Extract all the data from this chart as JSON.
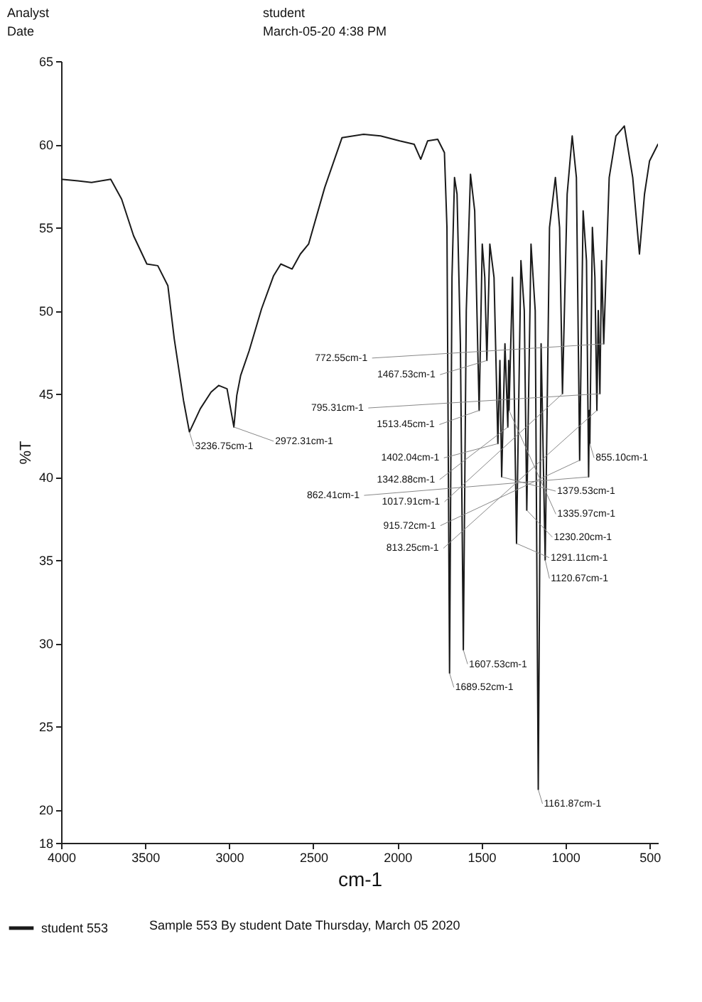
{
  "chart_data": {
    "type": "line",
    "xlabel": "cm-1",
    "ylabel": "%T",
    "xlim": [
      4000,
      450
    ],
    "ylim": [
      18,
      65
    ],
    "xticks": [
      4000,
      3500,
      3000,
      2500,
      2000,
      1500,
      1000,
      500
    ],
    "yticks": [
      18,
      20,
      25,
      30,
      35,
      40,
      45,
      50,
      55,
      60,
      65
    ],
    "grid": false,
    "legend": "bottom left",
    "series": [
      {
        "name": "student 553",
        "color": "#1a1a1a",
        "x": [
          4000,
          3900,
          3819,
          3705,
          3640,
          3569,
          3490,
          3425,
          3365,
          3327,
          3272,
          3236.75,
          3172,
          3108,
          3063,
          3013,
          2972.31,
          2955,
          2932,
          2881,
          2808,
          2736,
          2693,
          2626,
          2577,
          2528,
          2432,
          2329,
          2200,
          2100,
          1986,
          1900,
          1861,
          1820,
          1760,
          1720,
          1705,
          1689.52,
          1675,
          1660,
          1645,
          1625,
          1607.53,
          1590,
          1565,
          1540,
          1513.45,
          1495,
          1480,
          1467.53,
          1450,
          1425,
          1402.04,
          1390,
          1379.53,
          1360,
          1342.88,
          1338,
          1335.97,
          1315,
          1291.11,
          1265,
          1245,
          1230.2,
          1205,
          1180,
          1161.87,
          1145,
          1120.67,
          1095,
          1060,
          1035,
          1017.91,
          990,
          960,
          935,
          915.72,
          895,
          875,
          862.41,
          858,
          855.1,
          840,
          825,
          813.25,
          805,
          795.31,
          785,
          772.55,
          740,
          700,
          650,
          600,
          560,
          530,
          500,
          450
        ],
        "values": [
          57.9,
          57.8,
          57.7,
          57.9,
          56.7,
          54.5,
          52.8,
          52.7,
          51.5,
          48.3,
          44.6,
          42.7,
          44.1,
          45.1,
          45.5,
          45.3,
          43.0,
          44.9,
          46.1,
          47.6,
          50.1,
          52.1,
          52.8,
          52.5,
          53.4,
          54.0,
          57.4,
          60.4,
          60.6,
          60.5,
          60.2,
          60.0,
          59.1,
          60.2,
          60.3,
          59.5,
          55,
          28.2,
          52,
          58,
          57,
          48,
          29.6,
          50,
          58.2,
          56,
          44,
          54,
          52,
          47,
          54,
          52,
          42,
          47,
          40,
          48,
          43,
          47,
          44,
          52,
          36,
          53,
          50,
          38,
          54,
          50,
          21.2,
          48,
          35,
          55,
          58,
          55,
          45,
          57,
          60.5,
          58,
          41,
          56,
          53,
          40,
          44,
          42,
          55,
          52,
          44,
          50,
          45,
          53,
          48,
          58,
          60.5,
          61.1,
          58,
          53.4,
          57,
          59,
          60
        ]
      }
    ],
    "annotations": [
      "Analyst",
      "Date",
      "student",
      "March-05-20 4:38 PM",
      "Sample 553 By student Date Thursday, March 05 2020",
      {
        "text": "3236.75cm-1",
        "x": 3236.75,
        "y": 42.7
      },
      {
        "text": "2972.31cm-1",
        "x": 2972.31,
        "y": 43.0
      },
      {
        "text": "1689.52cm-1",
        "x": 1689.52,
        "y": 28.2
      },
      {
        "text": "1607.53cm-1",
        "x": 1607.53,
        "y": 29.6
      },
      {
        "text": "1513.45cm-1",
        "x": 1513.45,
        "y": 44
      },
      {
        "text": "1467.53cm-1",
        "x": 1467.53,
        "y": 47
      },
      {
        "text": "1402.04cm-1",
        "x": 1402.04,
        "y": 42
      },
      {
        "text": "1379.53cm-1",
        "x": 1379.53,
        "y": 40
      },
      {
        "text": "1342.88cm-1",
        "x": 1342.88,
        "y": 43
      },
      {
        "text": "1335.97cm-1",
        "x": 1335.97,
        "y": 44
      },
      {
        "text": "1291.11cm-1",
        "x": 1291.11,
        "y": 36
      },
      {
        "text": "1230.20cm-1",
        "x": 1230.2,
        "y": 38
      },
      {
        "text": "1161.87cm-1",
        "x": 1161.87,
        "y": 21.2
      },
      {
        "text": "1120.67cm-1",
        "x": 1120.67,
        "y": 35
      },
      {
        "text": "1017.91cm-1",
        "x": 1017.91,
        "y": 45
      },
      {
        "text": "915.72cm-1",
        "x": 915.72,
        "y": 41
      },
      {
        "text": "862.41cm-1",
        "x": 862.41,
        "y": 40
      },
      {
        "text": "855.10cm-1",
        "x": 855.1,
        "y": 42
      },
      {
        "text": "813.25cm-1",
        "x": 813.25,
        "y": 44
      },
      {
        "text": "795.31cm-1",
        "x": 795.31,
        "y": 45
      },
      {
        "text": "772.55cm-1",
        "x": 772.55,
        "y": 48
      }
    ]
  }
}
